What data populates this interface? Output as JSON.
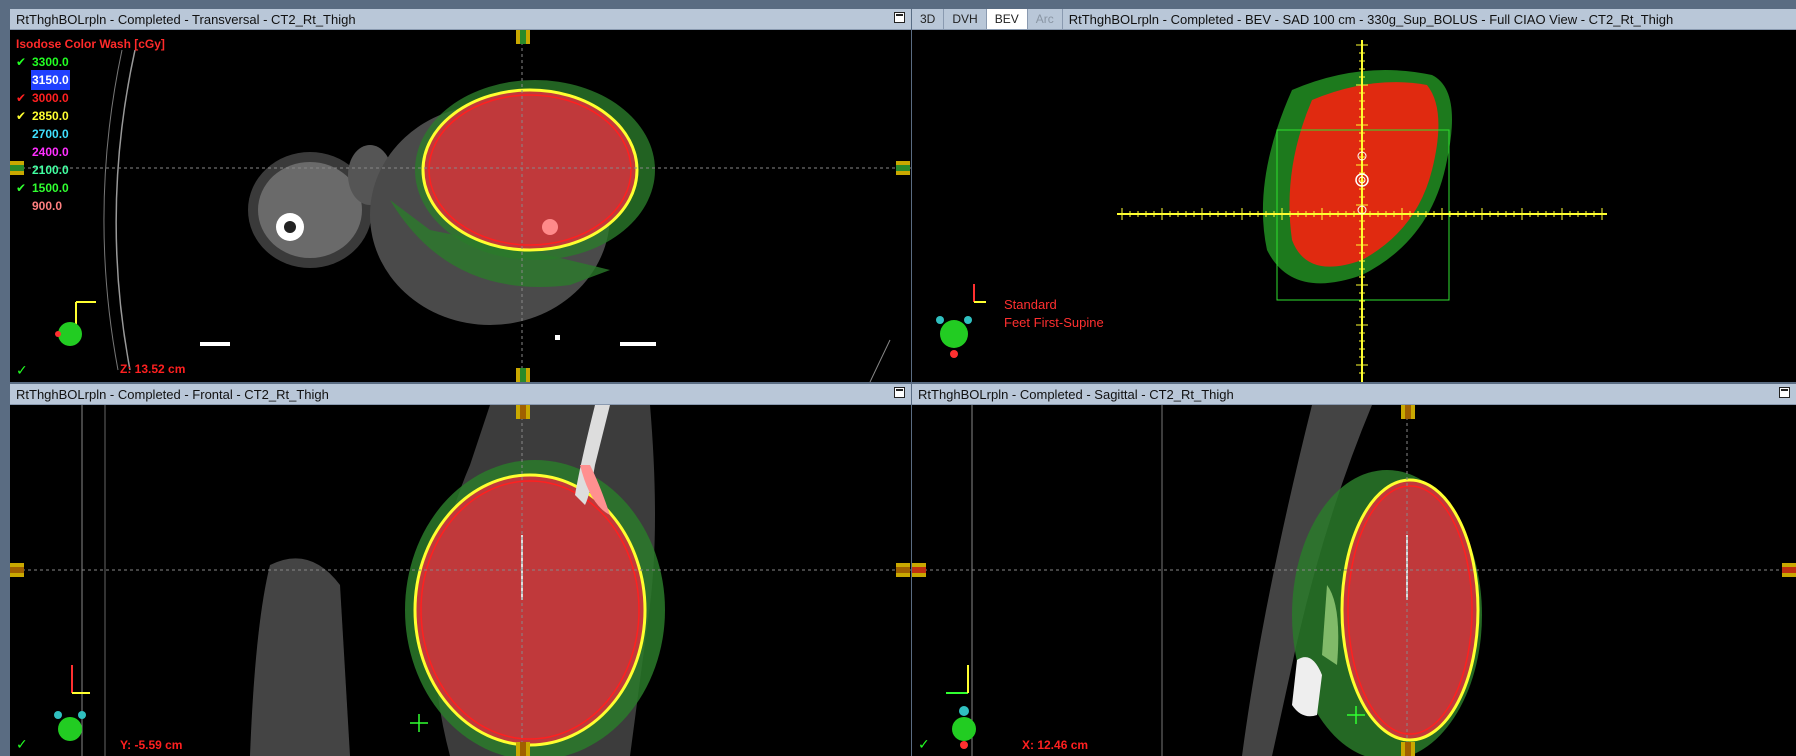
{
  "panels": {
    "transversal": {
      "title": "RtThghBOLrpln  -  Completed - Transversal - CT2_Rt_Thigh",
      "coord_label": "Z: 13.52 cm",
      "check": "✓"
    },
    "bev": {
      "tabs": [
        "3D",
        "DVH",
        "BEV",
        "Arc"
      ],
      "active_tab": "BEV",
      "title": "RtThghBOLrpln - Completed - BEV - SAD 100 cm - 330g_Sup_BOLUS - Full CIAO View - CT2_Rt_Thigh",
      "orientation_line1": "Standard",
      "orientation_line2": "Feet First-Supine"
    },
    "frontal": {
      "title": "RtThghBOLrpln  -  Completed - Frontal - CT2_Rt_Thigh",
      "coord_label": "Y: -5.59 cm",
      "check": "✓"
    },
    "sagittal": {
      "title": "RtThghBOLrpln  -  Completed - Sagittal - CT2_Rt_Thigh",
      "coord_label": "X: 12.46 cm",
      "check": "✓"
    }
  },
  "isodose": {
    "header": "Isodose Color Wash [cGy]",
    "levels": [
      {
        "value": "3300.0",
        "color": "#22ff22",
        "checked": true,
        "check_color": "#22ff22"
      },
      {
        "value": "3150.0",
        "color": "#ffffff",
        "checked": false,
        "highlight": "#2040ff"
      },
      {
        "value": "3000.0",
        "color": "#ff2020",
        "checked": true,
        "check_color": "#ff2020"
      },
      {
        "value": "2850.0",
        "color": "#ffff30",
        "checked": true,
        "check_color": "#ffff30"
      },
      {
        "value": "2700.0",
        "color": "#40e0ff",
        "checked": false
      },
      {
        "value": "2400.0",
        "color": "#ff30ff",
        "checked": false
      },
      {
        "value": "2100.0",
        "color": "#40ffa0",
        "checked": false
      },
      {
        "value": "1500.0",
        "color": "#30ff30",
        "checked": true,
        "check_color": "#30ff30"
      },
      {
        "value": "900.0",
        "color": "#ff8080",
        "checked": false
      }
    ]
  }
}
